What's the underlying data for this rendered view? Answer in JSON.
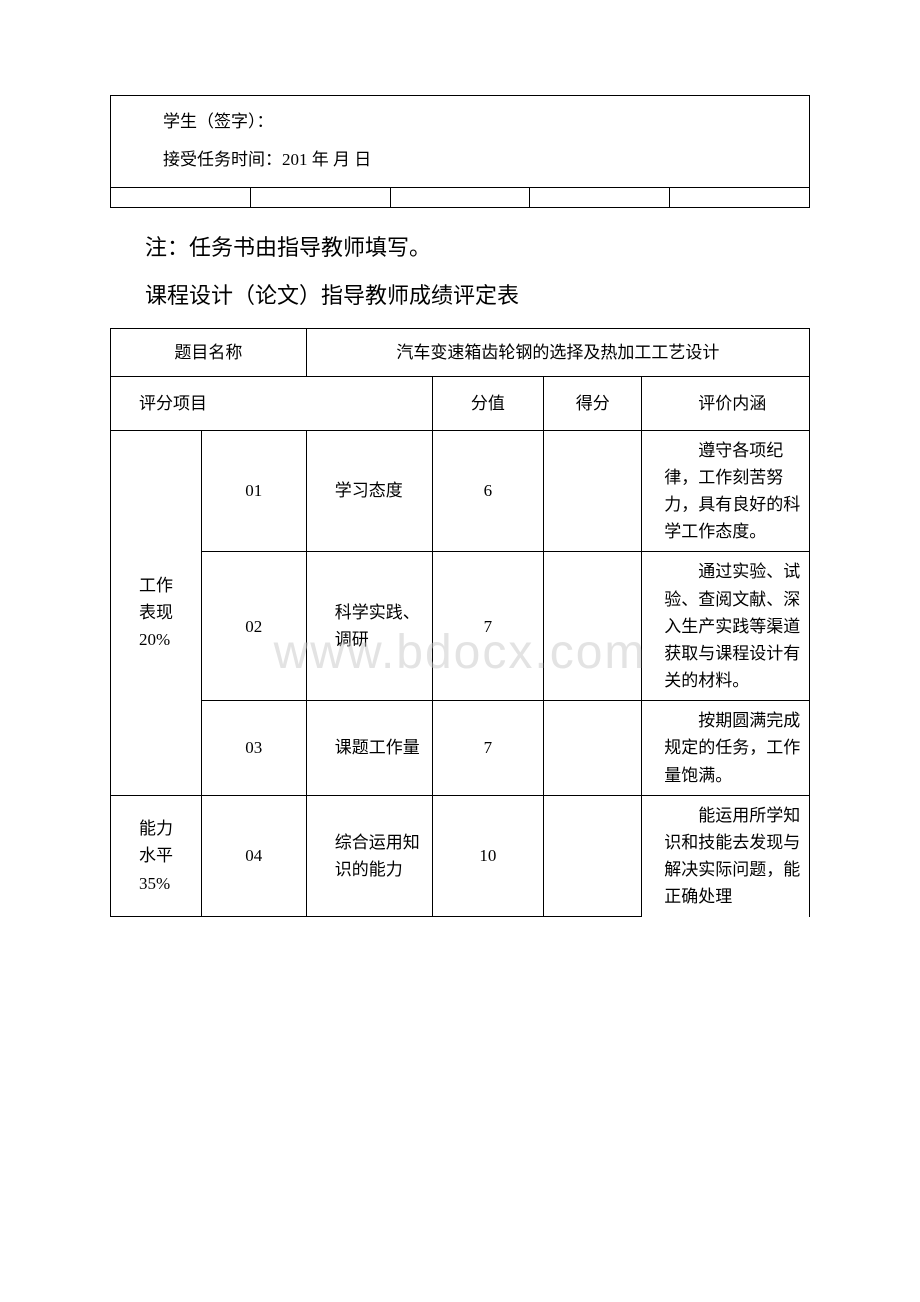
{
  "top_box": {
    "signature_label": "学生（签字）：",
    "accept_label": "接受任务时间：201   年 月 日"
  },
  "note": "注：任务书由指导教师填写。",
  "subtitle": "课程设计（论文）指导教师成绩评定表",
  "watermark": "www.bdocx.com",
  "table_headers": {
    "topic_label": "题目名称",
    "topic_value": "汽车变速箱齿轮钢的选择及热加工工艺设计",
    "eval_item": "评分项目",
    "score_max": "分值",
    "score_got": "得分",
    "eval_desc": "评价内涵"
  },
  "sections": [
    {
      "section_label": "工作\n表现\n20%",
      "rows": [
        {
          "idx": "01",
          "item": "学习态度",
          "score": "6",
          "got": "",
          "desc": "遵守各项纪律，工作刻苦努力，具有良好的科学工作态度。"
        },
        {
          "idx": "02",
          "item": "科学实践、调研",
          "score": "7",
          "got": "",
          "desc": "通过实验、试验、查阅文献、深入生产实践等渠道获取与课程设计有关的材料。"
        },
        {
          "idx": "03",
          "item": "课题工作量",
          "score": "7",
          "got": "",
          "desc": "按期圆满完成规定的任务，工作量饱满。"
        }
      ]
    },
    {
      "section_label": "能力\n水平\n35%",
      "rows": [
        {
          "idx": "04",
          "item": "综合运用知识的能力",
          "score": "10",
          "got": "",
          "desc": "能运用所学知识和技能去发现与解决实际问题，能正确处理"
        }
      ]
    }
  ]
}
